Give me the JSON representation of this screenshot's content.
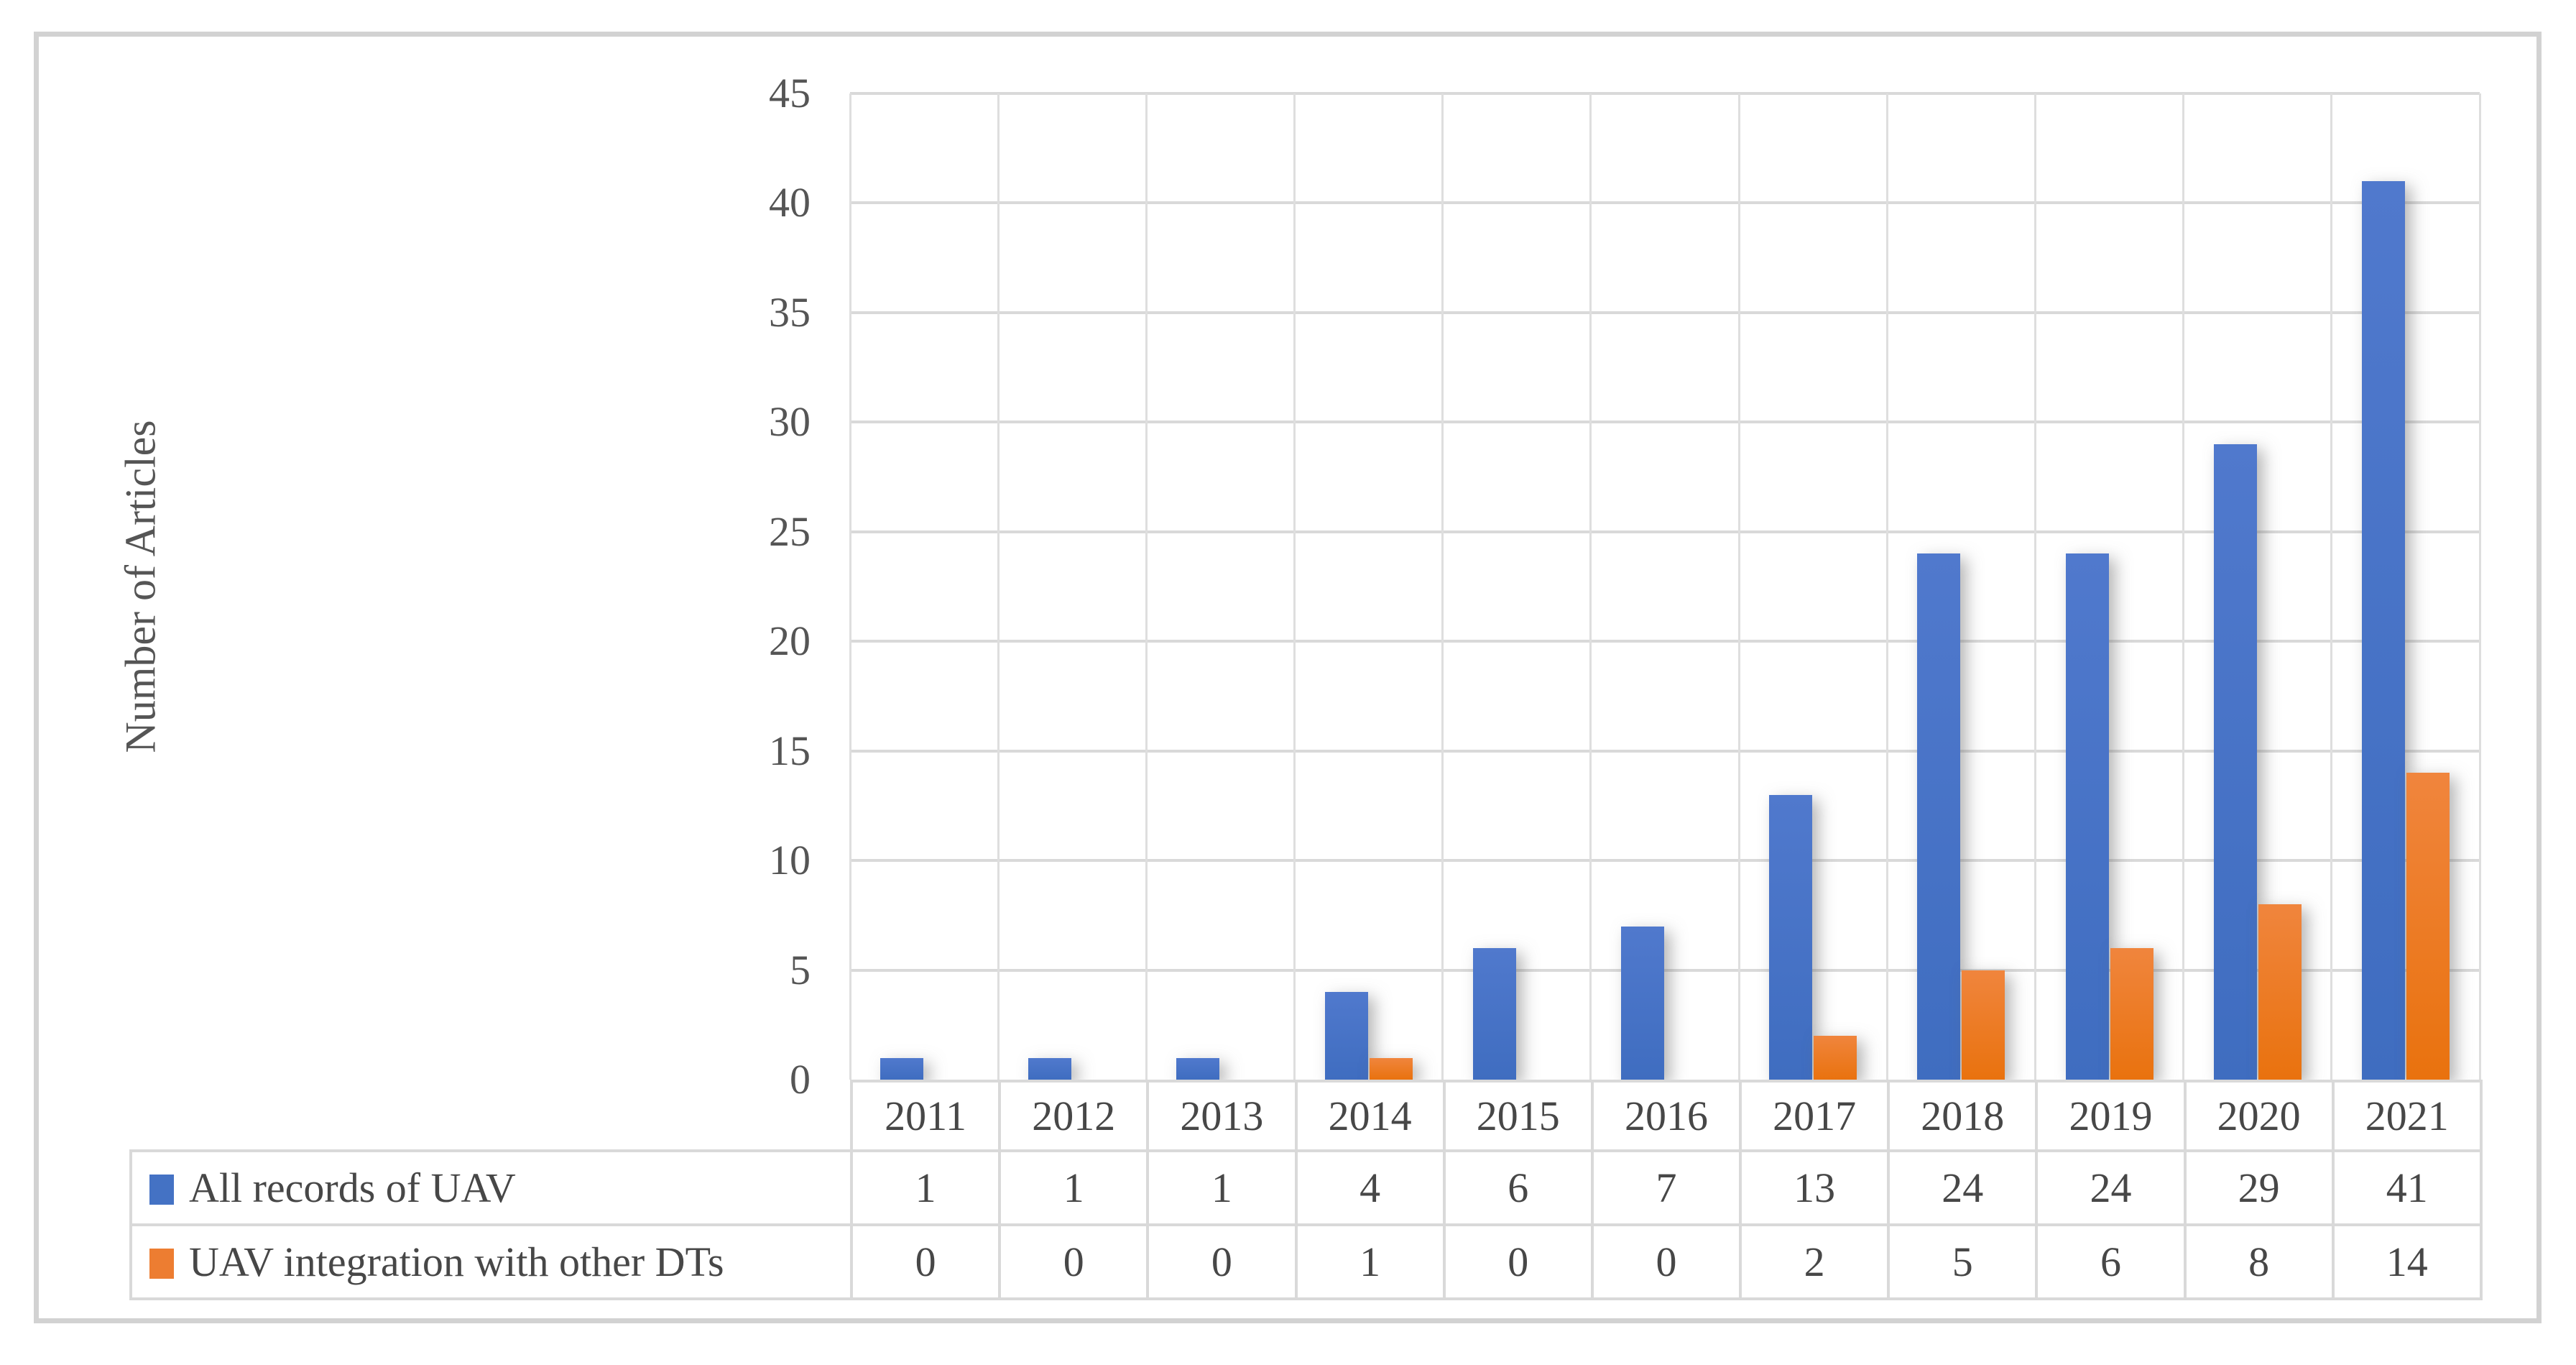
{
  "chart_data": {
    "type": "bar",
    "title": "",
    "xlabel": "",
    "ylabel": "Number of Articles",
    "categories": [
      "2011",
      "2012",
      "2013",
      "2014",
      "2015",
      "2016",
      "2017",
      "2018",
      "2019",
      "2020",
      "2021"
    ],
    "series": [
      {
        "name": "All records of UAV",
        "color": "#4472C4",
        "values": [
          1,
          1,
          1,
          4,
          6,
          7,
          13,
          24,
          24,
          29,
          41
        ]
      },
      {
        "name": "UAV integration with other DTs",
        "color": "#ED7D31",
        "values": [
          0,
          0,
          0,
          1,
          0,
          0,
          2,
          5,
          6,
          8,
          14
        ]
      }
    ],
    "ylim": [
      0,
      45
    ],
    "yticks": [
      0,
      5,
      10,
      15,
      20,
      25,
      30,
      35,
      40,
      45
    ],
    "grid": true,
    "legend_position": "data-table-left",
    "data_table": true
  },
  "colors": {
    "series1": "#4472C4",
    "series2": "#ED7D31",
    "gridline": "#D9D9D9",
    "frame_border": "#D2D2D2",
    "axis_text": "#555555",
    "table_text": "#474747"
  }
}
